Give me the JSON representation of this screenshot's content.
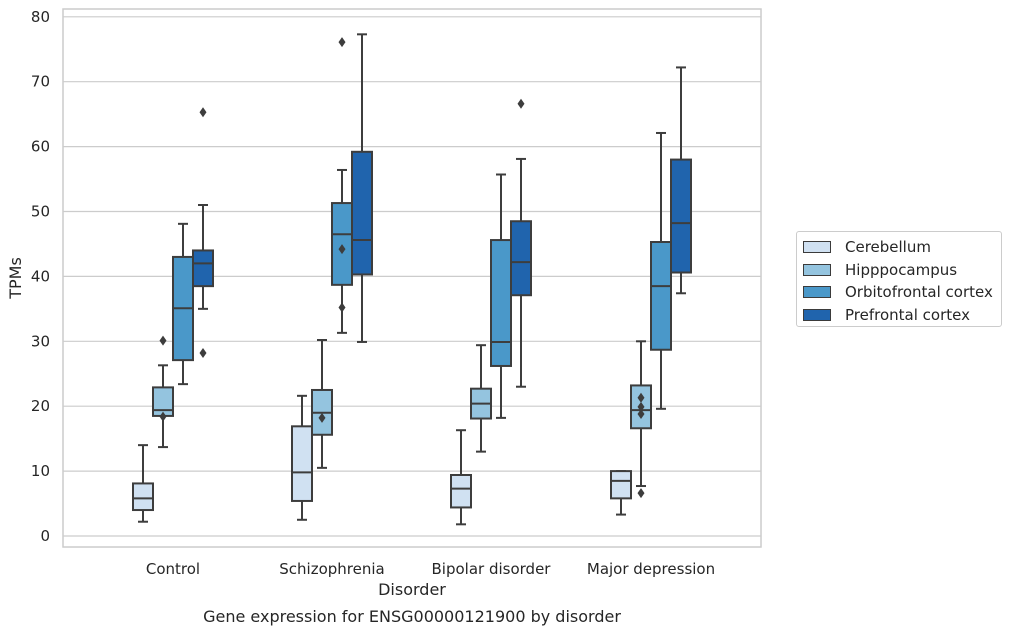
{
  "chart_data": {
    "type": "boxplot",
    "title": "Gene expression for ENSG00000121900 by disorder",
    "xlabel": "Disorder",
    "ylabel": "TPMs",
    "ylim": [
      -2,
      81.5
    ],
    "yticks": [
      0,
      10,
      20,
      30,
      40,
      50,
      60,
      70,
      80
    ],
    "grid": true,
    "legend_position": "right",
    "categories": [
      "Control",
      "Schizophrenia",
      "Bipolar disorder",
      "Major depression"
    ],
    "series": [
      {
        "name": "Cerebellum",
        "color": "#d0e1f2",
        "boxes": [
          {
            "whislo": 2.2,
            "q1": 4.0,
            "med": 5.8,
            "q3": 8.1,
            "whishi": 14.0,
            "fliers": []
          },
          {
            "whislo": 2.5,
            "q1": 5.4,
            "med": 9.8,
            "q3": 16.9,
            "whishi": 21.6,
            "fliers": []
          },
          {
            "whislo": 1.8,
            "q1": 4.4,
            "med": 7.3,
            "q3": 9.4,
            "whishi": 16.3,
            "fliers": []
          },
          {
            "whislo": 3.3,
            "q1": 5.8,
            "med": 8.5,
            "q3": 10.0,
            "whishi": 10.0,
            "fliers": []
          }
        ]
      },
      {
        "name": "Hipppocampus",
        "color": "#94c4df",
        "boxes": [
          {
            "whislo": 13.7,
            "q1": 18.5,
            "med": 19.4,
            "q3": 22.9,
            "whishi": 26.3,
            "fliers": [
              18.4,
              30.1
            ]
          },
          {
            "whislo": 10.5,
            "q1": 15.6,
            "med": 19.0,
            "q3": 22.5,
            "whishi": 30.2,
            "fliers": [
              18.2
            ]
          },
          {
            "whislo": 13.0,
            "q1": 18.1,
            "med": 20.4,
            "q3": 22.7,
            "whishi": 29.4,
            "fliers": []
          },
          {
            "whislo": 7.7,
            "q1": 16.6,
            "med": 19.4,
            "q3": 23.2,
            "whishi": 30.0,
            "fliers": [
              6.6,
              18.8,
              19.9,
              21.3
            ]
          }
        ]
      },
      {
        "name": "Orbitofrontal cortex",
        "color": "#4a98c9",
        "boxes": [
          {
            "whislo": 23.4,
            "q1": 27.1,
            "med": 35.1,
            "q3": 43.0,
            "whishi": 48.1,
            "fliers": []
          },
          {
            "whislo": 31.3,
            "q1": 38.7,
            "med": 46.5,
            "q3": 51.3,
            "whishi": 56.4,
            "fliers": [
              35.2,
              44.2,
              76.1
            ]
          },
          {
            "whislo": 18.2,
            "q1": 26.2,
            "med": 29.9,
            "q3": 45.6,
            "whishi": 55.7,
            "fliers": []
          },
          {
            "whislo": 19.6,
            "q1": 28.7,
            "med": 38.5,
            "q3": 45.3,
            "whishi": 62.1,
            "fliers": []
          }
        ]
      },
      {
        "name": "Prefrontal cortex",
        "color": "#2064ad",
        "boxes": [
          {
            "whislo": 35.0,
            "q1": 38.5,
            "med": 42.0,
            "q3": 44.0,
            "whishi": 51.0,
            "fliers": [
              28.2,
              65.3
            ]
          },
          {
            "whislo": 29.9,
            "q1": 40.3,
            "med": 45.6,
            "q3": 59.2,
            "whishi": 77.3,
            "fliers": []
          },
          {
            "whislo": 23.0,
            "q1": 37.1,
            "med": 42.2,
            "q3": 48.5,
            "whishi": 58.1,
            "fliers": [
              66.6
            ]
          },
          {
            "whislo": 37.4,
            "q1": 40.6,
            "med": 48.2,
            "q3": 58.0,
            "whishi": 72.2,
            "fliers": []
          }
        ]
      }
    ]
  }
}
